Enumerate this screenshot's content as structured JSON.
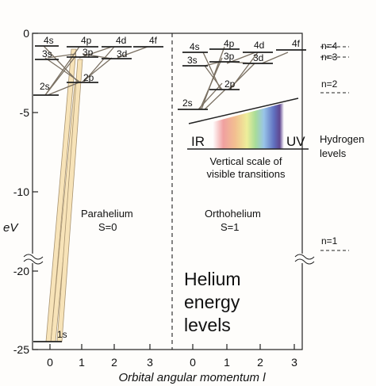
{
  "y_axis": {
    "label": "eV",
    "ticks": [
      {
        "value": 0,
        "label": "0"
      },
      {
        "value": -5,
        "label": "-5"
      },
      {
        "value": -10,
        "label": "-10"
      },
      {
        "value": -20,
        "label": "-20"
      },
      {
        "value": -25,
        "label": "-25"
      }
    ]
  },
  "x_axis": {
    "label": "Orbital angular momentum l",
    "parahelium_ticks": [
      "0",
      "1",
      "2",
      "3"
    ],
    "orthohelium_ticks": [
      "0",
      "1",
      "2",
      "3"
    ]
  },
  "parahelium": {
    "title": "Parahelium",
    "spin": "S=0",
    "levels": [
      {
        "label": "1s",
        "energy": -24.6
      },
      {
        "label": "2s",
        "energy": -4.0
      },
      {
        "label": "2p",
        "energy": -3.4
      },
      {
        "label": "3s",
        "energy": -1.7
      },
      {
        "label": "3p",
        "energy": -1.5
      },
      {
        "label": "3d",
        "energy": -1.5
      },
      {
        "label": "4s",
        "energy": -0.6
      },
      {
        "label": "4p",
        "energy": -0.5
      },
      {
        "label": "4d",
        "energy": -0.5
      },
      {
        "label": "4f",
        "energy": -0.5
      }
    ]
  },
  "orthohelium": {
    "title": "Orthohelium",
    "spin": "S=1",
    "levels": [
      {
        "label": "2s",
        "energy": -4.8
      },
      {
        "label": "2p",
        "energy": -3.6
      },
      {
        "label": "3s",
        "energy": -1.9
      },
      {
        "label": "3p",
        "energy": -1.6
      },
      {
        "label": "3d",
        "energy": -1.5
      },
      {
        "label": "4s",
        "energy": -0.8
      },
      {
        "label": "4p",
        "energy": -0.6
      },
      {
        "label": "4d",
        "energy": -0.5
      },
      {
        "label": "4f",
        "energy": -0.5
      }
    ]
  },
  "hydrogen": {
    "title_line1": "Hydrogen",
    "title_line2": "levels",
    "levels": [
      {
        "label": "n=4",
        "energy": -0.85
      },
      {
        "label": "n=3",
        "energy": -1.51
      },
      {
        "label": "n=2",
        "energy": -3.4
      },
      {
        "label": "n=1",
        "energy": -13.6
      }
    ]
  },
  "spectrum": {
    "ir_label": "IR",
    "uv_label": "UV",
    "caption_line1": "Vertical scale of",
    "caption_line2": "visible transitions"
  },
  "main_title": {
    "line1": "Helium",
    "line2": "energy",
    "line3": "levels"
  }
}
